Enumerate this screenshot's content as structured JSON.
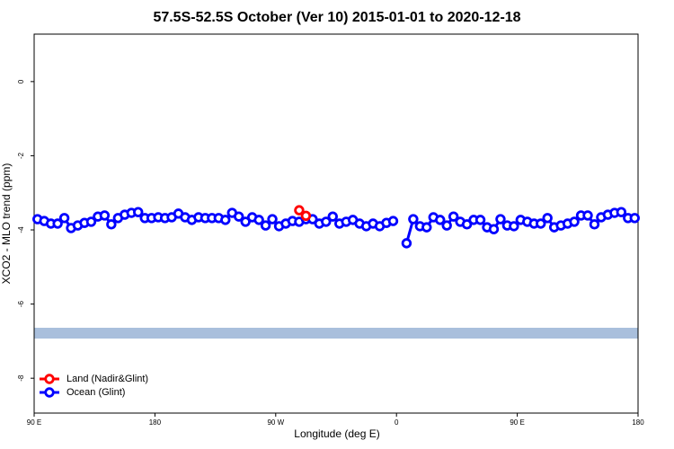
{
  "chart_data": {
    "type": "line",
    "title": "57.5S-52.5S October (Ver 10)   2015-01-01 to 2020-12-18",
    "xlabel": "Longitude (deg E)",
    "ylabel": "XCO2 - MLO trend (ppm)",
    "xlim": [
      90,
      540
    ],
    "ylim": [
      -8.94,
      1.28
    ],
    "xticks": [
      {
        "value": 90,
        "label": "90 E"
      },
      {
        "value": 180,
        "label": "180"
      },
      {
        "value": 270,
        "label": "90 W"
      },
      {
        "value": 360,
        "label": "0"
      },
      {
        "value": 450,
        "label": "90 E"
      },
      {
        "value": 540,
        "label": "180"
      }
    ],
    "yticks": [
      0,
      -2,
      -4,
      -6,
      -8
    ],
    "legend": "bottom-left",
    "series": [
      {
        "name": "Land (Nadir&Glint)",
        "color": "#ff0000",
        "x": [
          287.5,
          292.5
        ],
        "values": [
          -3.47,
          -3.62
        ]
      },
      {
        "name": "Ocean (Glint)",
        "color": "#0000ff",
        "x": [
          92.5,
          97.5,
          102.5,
          107.5,
          112.5,
          117.5,
          122.5,
          127.5,
          132.5,
          137.5,
          142.5,
          147.5,
          152.5,
          157.5,
          162.5,
          167.5,
          172.5,
          177.5,
          182.5,
          187.5,
          192.5,
          197.5,
          202.5,
          207.5,
          212.5,
          217.5,
          222.5,
          227.5,
          232.5,
          237.5,
          242.5,
          247.5,
          252.5,
          257.5,
          262.5,
          267.5,
          272.5,
          277.5,
          282.5,
          287.5,
          292.5,
          297.5,
          302.5,
          307.5,
          312.5,
          317.5,
          322.5,
          327.5,
          332.5,
          337.5,
          342.5,
          347.5,
          352.5,
          357.5,
          362.5,
          367.5,
          372.5,
          377.5,
          382.5,
          387.5,
          392.5,
          397.5,
          402.5,
          407.5,
          412.5,
          417.5,
          422.5,
          427.5,
          432.5,
          437.5,
          442.5,
          447.5,
          452.5,
          457.5,
          462.5,
          467.5,
          472.5,
          477.5,
          482.5,
          487.5,
          492.5,
          497.5,
          502.5,
          507.5,
          512.5,
          517.5,
          522.5,
          527.5,
          532.5,
          537.5
        ],
        "values": [
          -3.71,
          -3.76,
          -3.83,
          -3.83,
          -3.68,
          -3.95,
          -3.88,
          -3.81,
          -3.78,
          -3.64,
          -3.61,
          -3.85,
          -3.68,
          -3.59,
          -3.54,
          -3.52,
          -3.68,
          -3.68,
          -3.66,
          -3.68,
          -3.66,
          -3.56,
          -3.66,
          -3.73,
          -3.66,
          -3.68,
          -3.68,
          -3.68,
          -3.73,
          -3.54,
          -3.64,
          -3.78,
          -3.66,
          -3.73,
          -3.88,
          -3.71,
          -3.9,
          -3.83,
          -3.76,
          -3.78,
          -3.71,
          -3.71,
          -3.83,
          -3.78,
          -3.64,
          -3.83,
          -3.78,
          -3.73,
          -3.83,
          -3.9,
          -3.83,
          -3.9,
          -3.81,
          -3.76,
          null,
          -4.36,
          -3.71,
          -3.9,
          -3.93,
          -3.66,
          -3.73,
          -3.88,
          -3.64,
          -3.78,
          -3.85,
          -3.73,
          -3.73,
          -3.93,
          -3.98,
          -3.71,
          -3.88,
          -3.9,
          -3.73,
          -3.78,
          -3.83,
          -3.83,
          -3.68,
          -3.93,
          -3.88,
          -3.83,
          -3.78,
          -3.61,
          -3.61,
          -3.85,
          -3.66,
          -3.59,
          -3.54,
          -3.52,
          -3.68,
          -3.68
        ]
      }
    ]
  }
}
